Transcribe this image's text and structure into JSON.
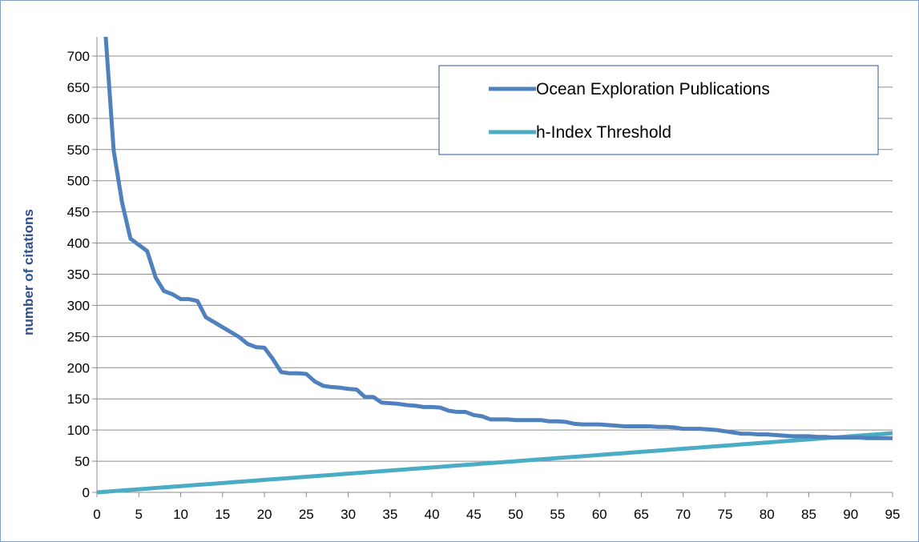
{
  "chart_data": {
    "type": "line",
    "title": "",
    "xlabel": "",
    "ylabel": "number of citations",
    "xlim": [
      0,
      95
    ],
    "ylim": [
      0,
      700
    ],
    "x_ticks": [
      0,
      5,
      10,
      15,
      20,
      25,
      30,
      35,
      40,
      45,
      50,
      55,
      60,
      65,
      70,
      75,
      80,
      85,
      90,
      95
    ],
    "y_ticks": [
      0,
      50,
      100,
      150,
      200,
      250,
      300,
      350,
      400,
      450,
      500,
      550,
      600,
      650,
      700
    ],
    "grid": "horizontal",
    "legend_position": "top-right",
    "series": [
      {
        "name": "Ocean Exploration Publications",
        "color": "#4f81bd",
        "x": [
          1,
          2,
          3,
          4,
          5,
          6,
          7,
          8,
          9,
          10,
          11,
          12,
          13,
          14,
          15,
          16,
          17,
          18,
          19,
          20,
          21,
          22,
          23,
          24,
          25,
          26,
          27,
          28,
          29,
          30,
          31,
          32,
          33,
          34,
          35,
          36,
          37,
          38,
          39,
          40,
          41,
          42,
          43,
          44,
          45,
          46,
          47,
          48,
          49,
          50,
          51,
          52,
          53,
          54,
          55,
          56,
          57,
          58,
          59,
          60,
          61,
          62,
          63,
          64,
          65,
          66,
          67,
          68,
          69,
          70,
          71,
          72,
          73,
          74,
          75,
          76,
          77,
          78,
          79,
          80,
          81,
          82,
          83,
          84,
          85,
          86,
          87,
          88,
          89,
          90,
          91,
          92,
          93,
          94,
          95
        ],
        "values": [
          740,
          548,
          465,
          407,
          397,
          387,
          345,
          323,
          318,
          310,
          310,
          307,
          281,
          273,
          265,
          257,
          249,
          238,
          233,
          232,
          214,
          193,
          191,
          191,
          190,
          178,
          171,
          169,
          168,
          166,
          165,
          153,
          153,
          144,
          143,
          142,
          140,
          139,
          137,
          137,
          136,
          131,
          129,
          129,
          124,
          122,
          117,
          117,
          117,
          116,
          116,
          116,
          116,
          114,
          114,
          113,
          110,
          109,
          109,
          109,
          108,
          107,
          106,
          106,
          106,
          106,
          105,
          105,
          104,
          102,
          102,
          102,
          101,
          100,
          98,
          96,
          94,
          94,
          93,
          93,
          92,
          91,
          90,
          90,
          90,
          89,
          89,
          88,
          88,
          88,
          88,
          87,
          87,
          87,
          87
        ]
      },
      {
        "name": "h-Index Threshold",
        "color": "#4bacc6",
        "x": [
          0,
          1,
          2,
          3,
          4,
          5,
          6,
          7,
          8,
          9,
          10,
          11,
          12,
          13,
          14,
          15,
          16,
          17,
          18,
          19,
          20,
          21,
          22,
          23,
          24,
          25,
          26,
          27,
          28,
          29,
          30,
          31,
          32,
          33,
          34,
          35,
          36,
          37,
          38,
          39,
          40,
          41,
          42,
          43,
          44,
          45,
          46,
          47,
          48,
          49,
          50,
          51,
          52,
          53,
          54,
          55,
          56,
          57,
          58,
          59,
          60,
          61,
          62,
          63,
          64,
          65,
          66,
          67,
          68,
          69,
          70,
          71,
          72,
          73,
          74,
          75,
          76,
          77,
          78,
          79,
          80,
          81,
          82,
          83,
          84,
          85,
          86,
          87,
          88,
          89,
          90,
          91,
          92,
          93,
          94,
          95
        ],
        "values": [
          0,
          1,
          2,
          3,
          4,
          5,
          6,
          7,
          8,
          9,
          10,
          11,
          12,
          13,
          14,
          15,
          16,
          17,
          18,
          19,
          20,
          21,
          22,
          23,
          24,
          25,
          26,
          27,
          28,
          29,
          30,
          31,
          32,
          33,
          34,
          35,
          36,
          37,
          38,
          39,
          40,
          41,
          42,
          43,
          44,
          45,
          46,
          47,
          48,
          49,
          50,
          51,
          52,
          53,
          54,
          55,
          56,
          57,
          58,
          59,
          60,
          61,
          62,
          63,
          64,
          65,
          66,
          67,
          68,
          69,
          70,
          71,
          72,
          73,
          74,
          75,
          76,
          77,
          78,
          79,
          80,
          81,
          82,
          83,
          84,
          85,
          86,
          87,
          88,
          89,
          90,
          91,
          92,
          93,
          94,
          95
        ]
      }
    ]
  }
}
